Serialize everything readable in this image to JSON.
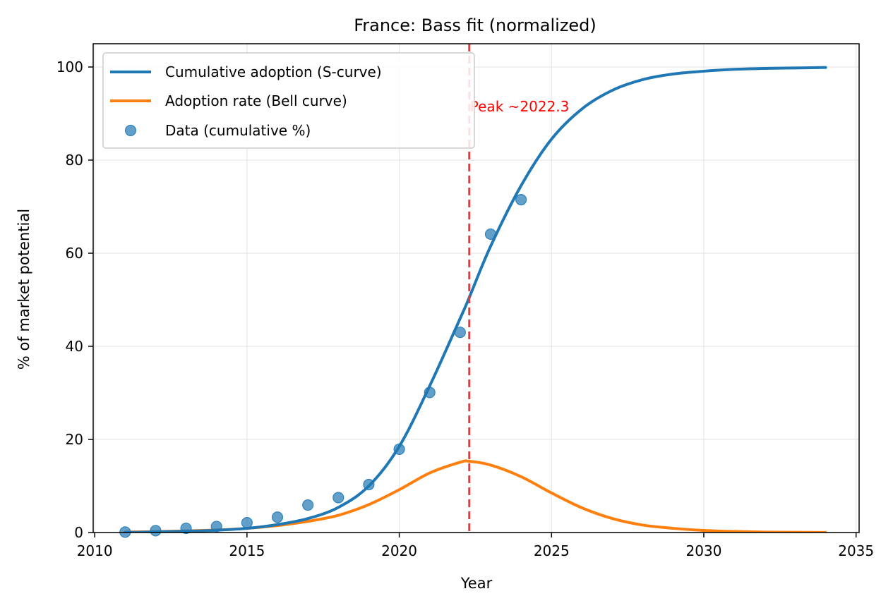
{
  "chart_data": {
    "type": "line",
    "title": "France: Bass fit (normalized)",
    "xlabel": "Year",
    "ylabel": "% of market potential",
    "xlim": [
      2009.95,
      2035.1
    ],
    "ylim": [
      0,
      105
    ],
    "xticks": [
      2010,
      2015,
      2020,
      2025,
      2030,
      2035
    ],
    "yticks": [
      0,
      20,
      40,
      60,
      80,
      100
    ],
    "grid": true,
    "legend_position": "top-left",
    "colors": {
      "cumulative": "#1f77b4",
      "rate": "#ff7f0e",
      "data": "#1f77b4",
      "peak_line": "#e8393f",
      "annotation": "#ff0000"
    },
    "series": [
      {
        "name": "Cumulative adoption (S-curve)",
        "kind": "line",
        "x": [
          2011,
          2012,
          2013,
          2014,
          2015,
          2016,
          2017,
          2018,
          2019,
          2020,
          2021,
          2022,
          2022.3,
          2023,
          2024,
          2025,
          2026,
          2027,
          2028,
          2029,
          2030,
          2031,
          2032,
          2033,
          2034
        ],
        "y": [
          0.0,
          0.13,
          0.28,
          0.5,
          0.9,
          1.7,
          3.0,
          5.4,
          10.0,
          18.5,
          31.5,
          46.0,
          50.5,
          61.5,
          74.5,
          84.5,
          91.0,
          95.0,
          97.3,
          98.5,
          99.1,
          99.5,
          99.7,
          99.8,
          99.9
        ]
      },
      {
        "name": "Adoption rate (Bell curve)",
        "kind": "line",
        "x": [
          2011,
          2012,
          2013,
          2014,
          2015,
          2016,
          2017,
          2018,
          2019,
          2020,
          2021,
          2022,
          2022.3,
          2023,
          2024,
          2025,
          2026,
          2027,
          2028,
          2029,
          2030,
          2031,
          2032,
          2033,
          2034
        ],
        "y": [
          0.1,
          0.18,
          0.35,
          0.55,
          0.9,
          1.5,
          2.4,
          3.7,
          6.0,
          9.2,
          12.8,
          15.1,
          15.3,
          14.5,
          12.0,
          8.5,
          5.3,
          3.0,
          1.6,
          0.9,
          0.45,
          0.22,
          0.1,
          0.05,
          0.02
        ]
      },
      {
        "name": "Data (cumulative %)",
        "kind": "scatter",
        "x": [
          2011,
          2012,
          2013,
          2014,
          2015,
          2016,
          2017,
          2018,
          2019,
          2020,
          2021,
          2022,
          2023,
          2024
        ],
        "y": [
          0.1,
          0.4,
          0.9,
          1.3,
          2.1,
          3.3,
          5.9,
          7.5,
          10.3,
          17.9,
          30.1,
          43.0,
          64.1,
          71.5
        ]
      }
    ],
    "annotations": [
      {
        "type": "vline",
        "x": 2022.3,
        "style": "dashed"
      },
      {
        "type": "text",
        "text": "Peak ~2022.3",
        "x": 2022.3,
        "y": 91.5
      }
    ]
  }
}
